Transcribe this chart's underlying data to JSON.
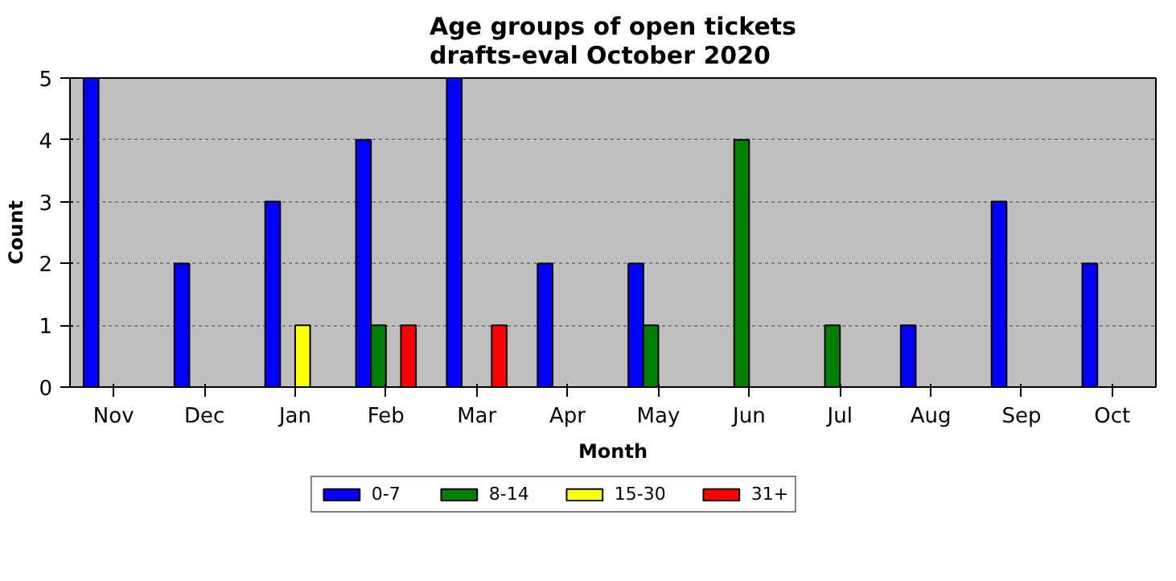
{
  "chart_data": {
    "type": "bar",
    "title": "Age groups of open tickets\ndrafts-eval October 2020",
    "xlabel": "Month",
    "ylabel": "Count",
    "categories": [
      "Nov",
      "Dec",
      "Jan",
      "Feb",
      "Mar",
      "Apr",
      "May",
      "Jun",
      "Jul",
      "Aug",
      "Sep",
      "Oct"
    ],
    "series": [
      {
        "name": "0-7",
        "color": "#0000ff",
        "values": [
          5,
          2,
          3,
          4,
          5,
          2,
          2,
          0,
          0,
          1,
          3,
          2
        ]
      },
      {
        "name": "8-14",
        "color": "#008000",
        "values": [
          0,
          0,
          0,
          1,
          0,
          0,
          1,
          4,
          1,
          0,
          0,
          0
        ]
      },
      {
        "name": "15-30",
        "color": "#ffff00",
        "values": [
          0,
          0,
          1,
          0,
          0,
          0,
          0,
          0,
          0,
          0,
          0,
          0
        ]
      },
      {
        "name": "31+",
        "color": "#ff0000",
        "values": [
          0,
          0,
          0,
          1,
          1,
          0,
          0,
          0,
          0,
          0,
          0,
          0
        ]
      }
    ],
    "ylim": [
      0,
      5
    ],
    "yticks": [
      0,
      1,
      2,
      3,
      4,
      5
    ],
    "grid": "y",
    "legend": "bottom"
  }
}
